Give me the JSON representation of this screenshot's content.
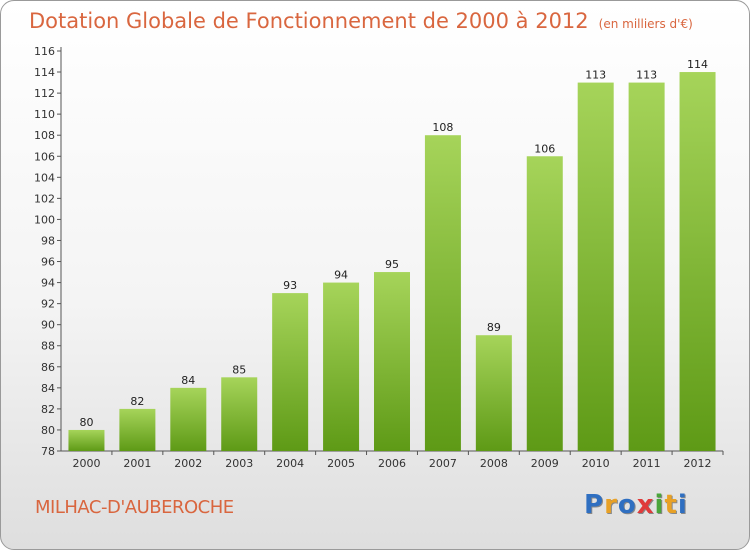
{
  "title": "Dotation Globale de Fonctionnement de 2000 à 2012",
  "subtitle": "(en milliers d'€)",
  "commune": "MILHAC-D'AUBEROCHE",
  "logo": {
    "letters": [
      "P",
      "r",
      "o",
      "x",
      "i",
      "t",
      "i"
    ],
    "colors": [
      "#2f6fc1",
      "#e8a126",
      "#2f6fc1",
      "#e03b3b",
      "#4aa53a",
      "#e8a126",
      "#2f6fc1"
    ]
  },
  "colors": {
    "bar_light": "#a6d45a",
    "bar_dark": "#5e9a16",
    "title": "#d9663f"
  },
  "chart_data": {
    "type": "bar",
    "categories": [
      "2000",
      "2001",
      "2002",
      "2003",
      "2004",
      "2005",
      "2006",
      "2007",
      "2008",
      "2009",
      "2010",
      "2011",
      "2012"
    ],
    "values": [
      80,
      82,
      84,
      85,
      93,
      94,
      95,
      108,
      89,
      106,
      113,
      113,
      114
    ],
    "ylim": [
      78,
      116
    ],
    "yticks": [
      "78",
      "80",
      "82",
      "84",
      "86",
      "88",
      "90",
      "92",
      "94",
      "96",
      "98",
      "100",
      "102",
      "104",
      "106",
      "108",
      "110",
      "112",
      "114",
      "116"
    ],
    "grid": false
  }
}
